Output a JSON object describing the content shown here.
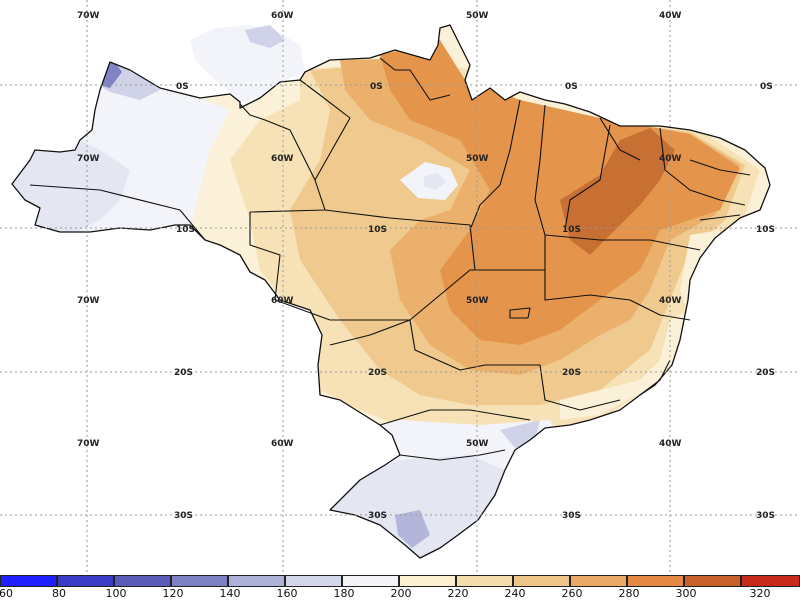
{
  "map": {
    "grid_labels": {
      "lon_top": [
        "70W",
        "60W",
        "50W",
        "40W"
      ],
      "lon_rows": [
        [
          "70W",
          "60W",
          "50W",
          "40W"
        ],
        [
          "70W",
          "60W",
          "50W",
          "40W"
        ],
        [
          "70W",
          "60W",
          "50W",
          "40W"
        ]
      ],
      "lat_rows": [
        [
          "0S",
          "0S",
          "0S",
          "0S"
        ],
        [
          "10S",
          "10S",
          "10S",
          "10S"
        ],
        [
          "20S",
          "20S",
          "20S",
          "20S"
        ],
        [
          "30S",
          "30S",
          "30S",
          "30S"
        ]
      ]
    },
    "colors": {
      "ocean": "#ffffff",
      "land_outside": "#ffffff",
      "c100": "#8083c4",
      "c120": "#b3b6da",
      "c140": "#d0d2e8",
      "c160": "#e4e6f2",
      "c180": "#f3f4fa",
      "c200": "#fbf1d8",
      "c220": "#f6e2b6",
      "c240": "#efc98e",
      "c260": "#eab06c",
      "c280": "#e4954b",
      "c300": "#c86f33"
    }
  },
  "colorbar": {
    "labels": [
      "60",
      "80",
      "100",
      "120",
      "140",
      "160",
      "180",
      "200",
      "220",
      "240",
      "260",
      "280",
      "300",
      "320"
    ],
    "colors": [
      "#1f1fff",
      "#3b3bc6",
      "#5a5cb8",
      "#7d80c2",
      "#aeb1d8",
      "#d4d6ea",
      "#f3f3f8",
      "#fbf0d2",
      "#f5dcac",
      "#efc68a",
      "#eaa966",
      "#e48a44",
      "#c8622c",
      "#c52a1c"
    ]
  }
}
